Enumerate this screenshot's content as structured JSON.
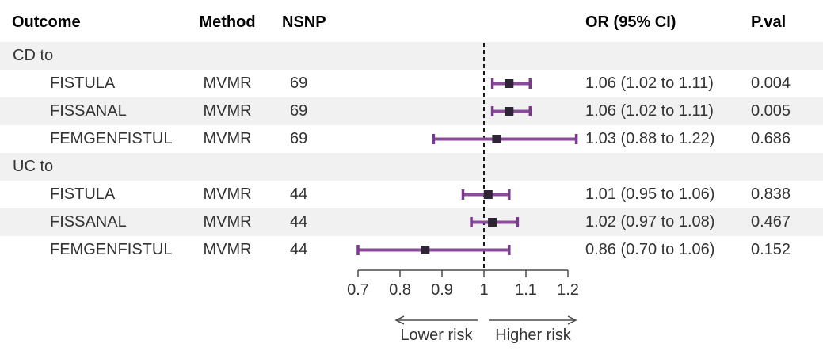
{
  "header": {
    "outcome": "Outcome",
    "method": "Method",
    "nsnp": "NSNP",
    "or_ci": "OR (95% CI)",
    "pval": "P.val"
  },
  "chart_data": {
    "type": "forest",
    "title": "",
    "xlabel": "",
    "xlim": [
      0.7,
      1.2
    ],
    "x_ticks": [
      0.7,
      0.8,
      0.9,
      1,
      1.1,
      1.2
    ],
    "x_tick_labels": [
      "0.7",
      "0.8",
      "0.9",
      "1",
      "1.1",
      "1.2"
    ],
    "null_line": 1,
    "grid": false,
    "direction_labels": {
      "left": "Lower risk",
      "right": "Higher risk"
    },
    "rows": [
      {
        "type": "group",
        "outcome": "CD to",
        "method": "",
        "nsnp": "",
        "or_ci_text": "",
        "pval": ""
      },
      {
        "type": "data",
        "outcome": "FISTULA",
        "method": "MVMR",
        "nsnp": "69",
        "or": 1.06,
        "ci_low": 1.02,
        "ci_high": 1.11,
        "or_ci_text": "1.06 (1.02 to 1.11)",
        "pval": "0.004"
      },
      {
        "type": "data",
        "outcome": "FISSANAL",
        "method": "MVMR",
        "nsnp": "69",
        "or": 1.06,
        "ci_low": 1.02,
        "ci_high": 1.11,
        "or_ci_text": "1.06 (1.02 to 1.11)",
        "pval": "0.005"
      },
      {
        "type": "data",
        "outcome": "FEMGENFISTUL",
        "method": "MVMR",
        "nsnp": "69",
        "or": 1.03,
        "ci_low": 0.88,
        "ci_high": 1.22,
        "or_ci_text": "1.03 (0.88 to 1.22)",
        "pval": "0.686"
      },
      {
        "type": "group",
        "outcome": "UC to",
        "method": "",
        "nsnp": "",
        "or_ci_text": "",
        "pval": ""
      },
      {
        "type": "data",
        "outcome": "FISTULA",
        "method": "MVMR",
        "nsnp": "44",
        "or": 1.01,
        "ci_low": 0.95,
        "ci_high": 1.06,
        "or_ci_text": "1.01 (0.95 to 1.06)",
        "pval": "0.838"
      },
      {
        "type": "data",
        "outcome": "FISSANAL",
        "method": "MVMR",
        "nsnp": "44",
        "or": 1.02,
        "ci_low": 0.97,
        "ci_high": 1.08,
        "or_ci_text": "1.02 (0.97 to 1.08)",
        "pval": "0.467"
      },
      {
        "type": "data",
        "outcome": "FEMGENFISTUL",
        "method": "MVMR",
        "nsnp": "44",
        "or": 0.86,
        "ci_low": 0.7,
        "ci_high": 1.06,
        "or_ci_text": "0.86 (0.70 to 1.06)",
        "pval": "0.152"
      }
    ]
  },
  "colors": {
    "ci_bar": "#8b4b9b",
    "ci_cap": "#7c3a8e",
    "marker": "#2f2336",
    "stripe": "#f1f1f1",
    "text": "#333333",
    "header_text": "#000000",
    "null_line": "#1a1a1a",
    "axis": "#4a4a4a",
    "arrow": "#4a4a4a"
  }
}
